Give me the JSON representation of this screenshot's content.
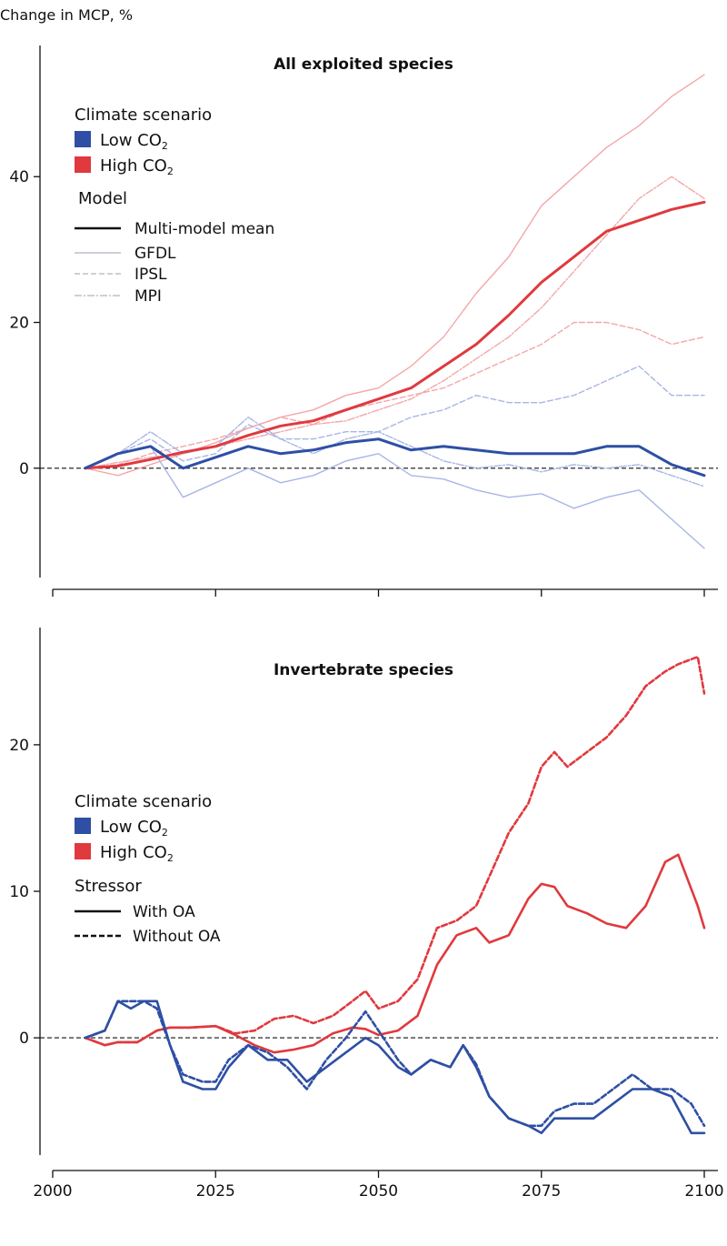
{
  "ylabel": "Change in MCP, %",
  "colors": {
    "low": "#2e4fa4",
    "high": "#e0393e",
    "low_light": "#a8b6e6",
    "high_light": "#f3a7a9"
  },
  "x_ticks": [
    2000,
    2025,
    2050,
    2075,
    2100
  ],
  "chart_data": [
    {
      "type": "line",
      "title": "All exploited species",
      "xlabel": "",
      "ylabel": "Change in MCP, %",
      "xlim": [
        2000,
        2100
      ],
      "ylim": [
        -15,
        58
      ],
      "y_ticks": [
        0,
        20,
        40
      ],
      "legend": {
        "scenario_title": "Climate scenario",
        "scenario_low": "Low CO",
        "scenario_high": "High CO",
        "subscript": "2",
        "model_title": "Model",
        "model_items": [
          "Multi-model mean",
          "GFDL",
          "IPSL",
          "MPI"
        ]
      },
      "series": [
        {
          "name": "High CO2 Multi-model mean",
          "scenario": "high",
          "model": "mean",
          "x": [
            2005,
            2010,
            2015,
            2020,
            2025,
            2030,
            2035,
            2040,
            2045,
            2050,
            2055,
            2060,
            2065,
            2070,
            2075,
            2080,
            2085,
            2090,
            2095,
            2100
          ],
          "values": [
            0,
            0.3,
            1.2,
            2.2,
            3,
            4.5,
            5.8,
            6.5,
            8,
            9.5,
            11,
            14,
            17,
            21,
            25.5,
            29,
            32.5,
            34,
            35.5,
            36.5
          ]
        },
        {
          "name": "High CO2 GFDL",
          "scenario": "high",
          "model": "gfdl",
          "x": [
            2005,
            2010,
            2015,
            2020,
            2025,
            2030,
            2035,
            2040,
            2045,
            2050,
            2055,
            2060,
            2065,
            2070,
            2075,
            2080,
            2085,
            2090,
            2095,
            2100
          ],
          "values": [
            0,
            -1,
            0.5,
            2,
            3.5,
            5.5,
            7,
            8,
            10,
            11,
            14,
            18,
            24,
            29,
            36,
            40,
            44,
            47,
            51,
            54
          ]
        },
        {
          "name": "High CO2 IPSL",
          "scenario": "high",
          "model": "ipsl",
          "x": [
            2005,
            2010,
            2015,
            2020,
            2025,
            2030,
            2035,
            2040,
            2045,
            2050,
            2055,
            2060,
            2065,
            2070,
            2075,
            2080,
            2085,
            2090,
            2095,
            2100
          ],
          "values": [
            0,
            0.5,
            2,
            3,
            4,
            5.5,
            7,
            6,
            8,
            9,
            10,
            11,
            13,
            15,
            17,
            20,
            20,
            19,
            17,
            18
          ]
        },
        {
          "name": "High CO2 MPI",
          "scenario": "high",
          "model": "mpi",
          "x": [
            2005,
            2010,
            2015,
            2020,
            2025,
            2030,
            2035,
            2040,
            2045,
            2050,
            2055,
            2060,
            2065,
            2070,
            2075,
            2080,
            2085,
            2090,
            2095,
            2100
          ],
          "values": [
            0,
            0.8,
            1.5,
            2,
            3,
            4,
            5,
            6,
            6.5,
            8,
            9.5,
            12,
            15,
            18,
            22,
            27,
            32,
            37,
            40,
            37
          ]
        },
        {
          "name": "Low CO2 Multi-model mean",
          "scenario": "low",
          "model": "mean",
          "x": [
            2005,
            2010,
            2015,
            2020,
            2025,
            2030,
            2035,
            2040,
            2045,
            2050,
            2055,
            2060,
            2065,
            2070,
            2075,
            2080,
            2085,
            2090,
            2095,
            2100
          ],
          "values": [
            0,
            2,
            3,
            0,
            1.5,
            3,
            2,
            2.5,
            3.5,
            4,
            2.5,
            3,
            2.5,
            2,
            2,
            2,
            3,
            3,
            0.5,
            -1
          ]
        },
        {
          "name": "Low CO2 GFDL",
          "scenario": "low",
          "model": "gfdl",
          "x": [
            2005,
            2010,
            2015,
            2020,
            2025,
            2030,
            2035,
            2040,
            2045,
            2050,
            2055,
            2060,
            2065,
            2070,
            2075,
            2080,
            2085,
            2090,
            2095,
            2100
          ],
          "values": [
            0,
            2,
            3,
            -4,
            -2,
            0,
            -2,
            -1,
            1,
            2,
            -1,
            -1.5,
            -3,
            -4,
            -3.5,
            -5.5,
            -4,
            -3,
            -7,
            -11
          ]
        },
        {
          "name": "Low CO2 IPSL",
          "scenario": "low",
          "model": "ipsl",
          "x": [
            2005,
            2010,
            2015,
            2020,
            2025,
            2030,
            2035,
            2040,
            2045,
            2050,
            2055,
            2060,
            2065,
            2070,
            2075,
            2080,
            2085,
            2090,
            2095,
            2100
          ],
          "values": [
            0,
            2,
            4,
            1,
            2,
            6,
            4,
            4,
            5,
            5,
            7,
            8,
            10,
            9,
            9,
            10,
            12,
            14,
            10,
            10
          ]
        },
        {
          "name": "Low CO2 MPI",
          "scenario": "low",
          "model": "mpi",
          "x": [
            2005,
            2010,
            2015,
            2020,
            2025,
            2030,
            2035,
            2040,
            2045,
            2050,
            2055,
            2060,
            2065,
            2070,
            2075,
            2080,
            2085,
            2090,
            2095,
            2100
          ],
          "values": [
            0,
            2,
            5,
            2,
            3,
            7,
            4,
            2,
            4,
            5,
            3,
            1,
            0,
            0.5,
            -0.5,
            0.5,
            0,
            0.5,
            -1,
            -2.5
          ]
        }
      ]
    },
    {
      "type": "line",
      "title": "Invertebrate species",
      "xlabel": "",
      "ylabel": "",
      "xlim": [
        2000,
        2100
      ],
      "ylim": [
        -8,
        28
      ],
      "y_ticks": [
        0,
        10,
        20
      ],
      "legend": {
        "scenario_title": "Climate scenario",
        "scenario_low": "Low CO",
        "scenario_high": "High CO",
        "subscript": "2",
        "stressor_title": "Stressor",
        "stressor_items": [
          "With OA",
          "Without OA"
        ]
      },
      "series": [
        {
          "name": "High CO2 With OA",
          "scenario": "high",
          "stressor": "with",
          "x": [
            2005,
            2008,
            2010,
            2013,
            2016,
            2018,
            2021,
            2025,
            2028,
            2031,
            2034,
            2037,
            2040,
            2043,
            2046,
            2048,
            2050,
            2053,
            2056,
            2059,
            2062,
            2065,
            2067,
            2070,
            2073,
            2075,
            2077,
            2079,
            2082,
            2085,
            2088,
            2091,
            2094,
            2096,
            2099,
            2100
          ],
          "values": [
            0,
            -0.5,
            -0.3,
            -0.3,
            0.5,
            0.7,
            0.7,
            0.8,
            0.2,
            -0.5,
            -1,
            -0.8,
            -0.5,
            0.3,
            0.7,
            0.6,
            0.2,
            0.5,
            1.5,
            5,
            7,
            7.5,
            6.5,
            7,
            9.5,
            10.5,
            10.3,
            9,
            8.5,
            7.8,
            7.5,
            9,
            12,
            12.5,
            9,
            7.5
          ]
        },
        {
          "name": "High CO2 Without OA",
          "scenario": "high",
          "stressor": "without",
          "x": [
            2005,
            2008,
            2010,
            2013,
            2016,
            2018,
            2021,
            2025,
            2028,
            2031,
            2034,
            2037,
            2040,
            2043,
            2046,
            2048,
            2050,
            2053,
            2056,
            2059,
            2062,
            2065,
            2067,
            2070,
            2073,
            2075,
            2077,
            2079,
            2082,
            2085,
            2088,
            2091,
            2094,
            2096,
            2099,
            2100
          ],
          "values": [
            0,
            -0.5,
            -0.3,
            -0.3,
            0.5,
            0.7,
            0.7,
            0.8,
            0.3,
            0.5,
            1.3,
            1.5,
            1,
            1.5,
            2.5,
            3.2,
            2,
            2.5,
            4,
            7.5,
            8,
            9,
            11,
            14,
            16,
            18.5,
            19.5,
            18.5,
            19.5,
            20.5,
            22,
            24,
            25,
            25.5,
            26,
            23.5
          ]
        },
        {
          "name": "Low CO2 With OA",
          "scenario": "low",
          "stressor": "with",
          "x": [
            2005,
            2008,
            2010,
            2012,
            2014,
            2016,
            2018,
            2020,
            2023,
            2025,
            2027,
            2030,
            2033,
            2036,
            2039,
            2042,
            2045,
            2048,
            2050,
            2053,
            2055,
            2058,
            2061,
            2063,
            2065,
            2067,
            2070,
            2073,
            2075,
            2077,
            2080,
            2083,
            2086,
            2089,
            2092,
            2095,
            2098,
            2100
          ],
          "values": [
            0,
            0.5,
            2.5,
            2,
            2.5,
            2.5,
            -0.5,
            -3,
            -3.5,
            -3.5,
            -2,
            -0.5,
            -1.5,
            -1.5,
            -3,
            -2,
            -1,
            0,
            -0.5,
            -2,
            -2.5,
            -1.5,
            -2,
            -0.5,
            -2,
            -4,
            -5.5,
            -6,
            -6.5,
            -5.5,
            -5.5,
            -5.5,
            -4.5,
            -3.5,
            -3.5,
            -4,
            -6.5,
            -6.5
          ]
        },
        {
          "name": "Low CO2 Without OA",
          "scenario": "low",
          "stressor": "without",
          "x": [
            2005,
            2008,
            2010,
            2012,
            2014,
            2016,
            2018,
            2020,
            2023,
            2025,
            2027,
            2030,
            2033,
            2036,
            2039,
            2042,
            2045,
            2048,
            2050,
            2053,
            2055,
            2058,
            2061,
            2063,
            2065,
            2067,
            2070,
            2073,
            2075,
            2077,
            2080,
            2083,
            2086,
            2089,
            2092,
            2095,
            2098,
            2100
          ],
          "values": [
            0,
            0.5,
            2.5,
            2.5,
            2.5,
            2,
            -0.5,
            -2.5,
            -3,
            -3,
            -1.5,
            -0.5,
            -1,
            -2,
            -3.5,
            -1.5,
            0,
            1.8,
            0.5,
            -1.5,
            -2.5,
            -1.5,
            -2,
            -0.5,
            -1.8,
            -4,
            -5.5,
            -6,
            -6,
            -5,
            -4.5,
            -4.5,
            -3.5,
            -2.5,
            -3.5,
            -3.5,
            -4.5,
            -6
          ]
        }
      ]
    }
  ]
}
